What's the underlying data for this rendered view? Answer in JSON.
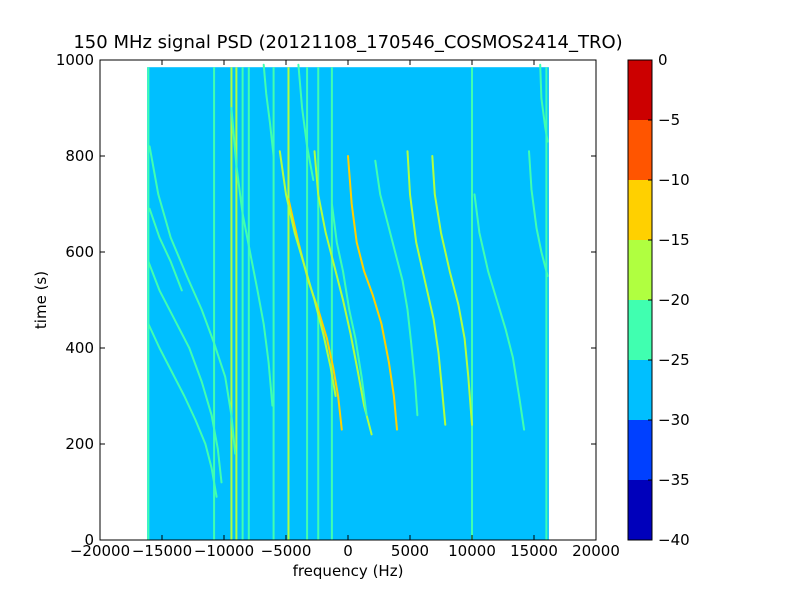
{
  "chart_data": {
    "type": "heatmap",
    "title": "150 MHz signal PSD (20121108_170546_COSMOS2414_TRO)",
    "xlabel": "frequency (Hz)",
    "ylabel": "time (s)",
    "xlim": [
      -20000,
      20000
    ],
    "ylim": [
      0,
      1000
    ],
    "x_ticks": [
      -20000,
      -15000,
      -10000,
      -5000,
      0,
      5000,
      10000,
      15000,
      20000
    ],
    "x_tick_labels": [
      "−20000",
      "−15000",
      "−10000",
      "−5000",
      "0",
      "5000",
      "10000",
      "15000",
      "20000"
    ],
    "y_ticks": [
      0,
      200,
      400,
      600,
      800,
      1000
    ],
    "y_tick_labels": [
      "0",
      "200",
      "400",
      "600",
      "800",
      "1000"
    ],
    "data_extent": {
      "x": [
        -16200,
        16200
      ],
      "y": [
        0,
        985
      ]
    },
    "background_level_db": -27.5,
    "grid": false,
    "colorbar": {
      "levels": [
        -40,
        -35,
        -30,
        -25,
        -20,
        -15,
        -10,
        -5,
        0
      ],
      "tick_labels": [
        "−40",
        "−35",
        "−30",
        "−25",
        "−20",
        "−15",
        "−10",
        "−5",
        "0"
      ],
      "colors": [
        "#0000bb",
        "#0040ff",
        "#00bfff",
        "#40ffb0",
        "#b0ff40",
        "#ffd000",
        "#ff5500",
        "#cc0000"
      ]
    },
    "vertical_lines": [
      {
        "x": -16100,
        "level_db": -22
      },
      {
        "x": -10800,
        "level_db": -22
      },
      {
        "x": -9400,
        "level_db": -17
      },
      {
        "x": -9000,
        "level_db": -17
      },
      {
        "x": -8500,
        "level_db": -22
      },
      {
        "x": -8000,
        "level_db": -22
      },
      {
        "x": -6000,
        "level_db": -22
      },
      {
        "x": -4800,
        "level_db": -17
      },
      {
        "x": -3300,
        "level_db": -22
      },
      {
        "x": -2400,
        "level_db": -22
      },
      {
        "x": -1300,
        "level_db": -22
      },
      {
        "x": 10000,
        "level_db": -22
      },
      {
        "x": 16000,
        "level_db": -22
      }
    ],
    "series": [
      {
        "level_db": -12,
        "points": [
          [
            -4800,
            710
          ],
          [
            -4000,
            620
          ],
          [
            -3200,
            540
          ],
          [
            -2400,
            480
          ],
          [
            -1700,
            420
          ],
          [
            -1200,
            360
          ],
          [
            -800,
            300
          ],
          [
            -500,
            230
          ]
        ]
      },
      {
        "level_db": -12,
        "points": [
          [
            0,
            800
          ],
          [
            300,
            700
          ],
          [
            700,
            620
          ],
          [
            1300,
            560
          ],
          [
            2000,
            510
          ],
          [
            2700,
            450
          ],
          [
            3300,
            370
          ],
          [
            3700,
            300
          ],
          [
            3950,
            230
          ]
        ]
      },
      {
        "level_db": -17,
        "points": [
          [
            -2700,
            810
          ],
          [
            -2400,
            720
          ],
          [
            -1800,
            640
          ],
          [
            -1100,
            570
          ],
          [
            -400,
            500
          ],
          [
            200,
            430
          ],
          [
            800,
            350
          ],
          [
            1300,
            280
          ],
          [
            1900,
            220
          ]
        ]
      },
      {
        "level_db": -17,
        "points": [
          [
            -5500,
            810
          ],
          [
            -5000,
            720
          ],
          [
            -4300,
            640
          ],
          [
            -3500,
            570
          ],
          [
            -2700,
            500
          ],
          [
            -2000,
            430
          ],
          [
            -1400,
            360
          ],
          [
            -1000,
            300
          ]
        ]
      },
      {
        "level_db": -17,
        "points": [
          [
            4800,
            810
          ],
          [
            5000,
            720
          ],
          [
            5500,
            620
          ],
          [
            6200,
            540
          ],
          [
            6900,
            460
          ],
          [
            7300,
            390
          ],
          [
            7600,
            310
          ],
          [
            7850,
            240
          ]
        ]
      },
      {
        "level_db": -17,
        "points": [
          [
            6800,
            800
          ],
          [
            7000,
            720
          ],
          [
            7500,
            640
          ],
          [
            8200,
            560
          ],
          [
            8900,
            490
          ],
          [
            9400,
            420
          ],
          [
            9700,
            340
          ],
          [
            10000,
            240
          ]
        ]
      },
      {
        "level_db": -22,
        "points": [
          [
            -16100,
            580
          ],
          [
            -15200,
            520
          ],
          [
            -14000,
            460
          ],
          [
            -12800,
            400
          ],
          [
            -11800,
            330
          ],
          [
            -11000,
            260
          ],
          [
            -10500,
            190
          ],
          [
            -10200,
            120
          ]
        ]
      },
      {
        "level_db": -22,
        "points": [
          [
            -16000,
            820
          ],
          [
            -15300,
            720
          ],
          [
            -14300,
            630
          ],
          [
            -13000,
            550
          ],
          [
            -11800,
            480
          ],
          [
            -10800,
            410
          ],
          [
            -9900,
            340
          ],
          [
            -9400,
            260
          ],
          [
            -9100,
            180
          ]
        ]
      },
      {
        "level_db": -22,
        "points": [
          [
            -16100,
            450
          ],
          [
            -15200,
            400
          ],
          [
            -14200,
            350
          ],
          [
            -13200,
            300
          ],
          [
            -12300,
            250
          ],
          [
            -11500,
            200
          ],
          [
            -11000,
            150
          ],
          [
            -10600,
            90
          ]
        ]
      },
      {
        "level_db": -22,
        "points": [
          [
            -9400,
            900
          ],
          [
            -9000,
            780
          ],
          [
            -8500,
            680
          ],
          [
            -7900,
            600
          ],
          [
            -7300,
            520
          ],
          [
            -6800,
            450
          ],
          [
            -6400,
            370
          ],
          [
            -6100,
            280
          ]
        ]
      },
      {
        "level_db": -22,
        "points": [
          [
            -4000,
            990
          ],
          [
            -3700,
            900
          ],
          [
            -3300,
            820
          ],
          [
            -2800,
            750
          ]
        ]
      },
      {
        "level_db": -22,
        "points": [
          [
            -1300,
            700
          ],
          [
            -900,
            620
          ],
          [
            -400,
            560
          ],
          [
            100,
            480
          ],
          [
            600,
            420
          ],
          [
            1100,
            340
          ],
          [
            1500,
            260
          ]
        ]
      },
      {
        "level_db": -22,
        "points": [
          [
            2200,
            790
          ],
          [
            2600,
            720
          ],
          [
            3200,
            660
          ],
          [
            3800,
            600
          ],
          [
            4400,
            540
          ],
          [
            4800,
            480
          ],
          [
            5100,
            410
          ],
          [
            5400,
            330
          ],
          [
            5600,
            260
          ]
        ]
      },
      {
        "level_db": -22,
        "points": [
          [
            -16000,
            690
          ],
          [
            -15200,
            630
          ],
          [
            -14300,
            580
          ],
          [
            -13400,
            520
          ]
        ]
      },
      {
        "level_db": -22,
        "points": [
          [
            10200,
            720
          ],
          [
            10600,
            640
          ],
          [
            11300,
            560
          ],
          [
            12000,
            500
          ],
          [
            12700,
            440
          ],
          [
            13300,
            380
          ],
          [
            13800,
            300
          ],
          [
            14200,
            230
          ]
        ]
      },
      {
        "level_db": -22,
        "points": [
          [
            14600,
            810
          ],
          [
            14800,
            730
          ],
          [
            15200,
            650
          ],
          [
            15600,
            600
          ],
          [
            16100,
            550
          ]
        ]
      },
      {
        "level_db": -22,
        "points": [
          [
            15500,
            990
          ],
          [
            15600,
            920
          ],
          [
            15900,
            860
          ],
          [
            16100,
            830
          ]
        ]
      },
      {
        "level_db": -22,
        "points": [
          [
            -6800,
            990
          ],
          [
            -6600,
            930
          ],
          [
            -6300,
            870
          ],
          [
            -6000,
            800
          ]
        ]
      }
    ]
  }
}
